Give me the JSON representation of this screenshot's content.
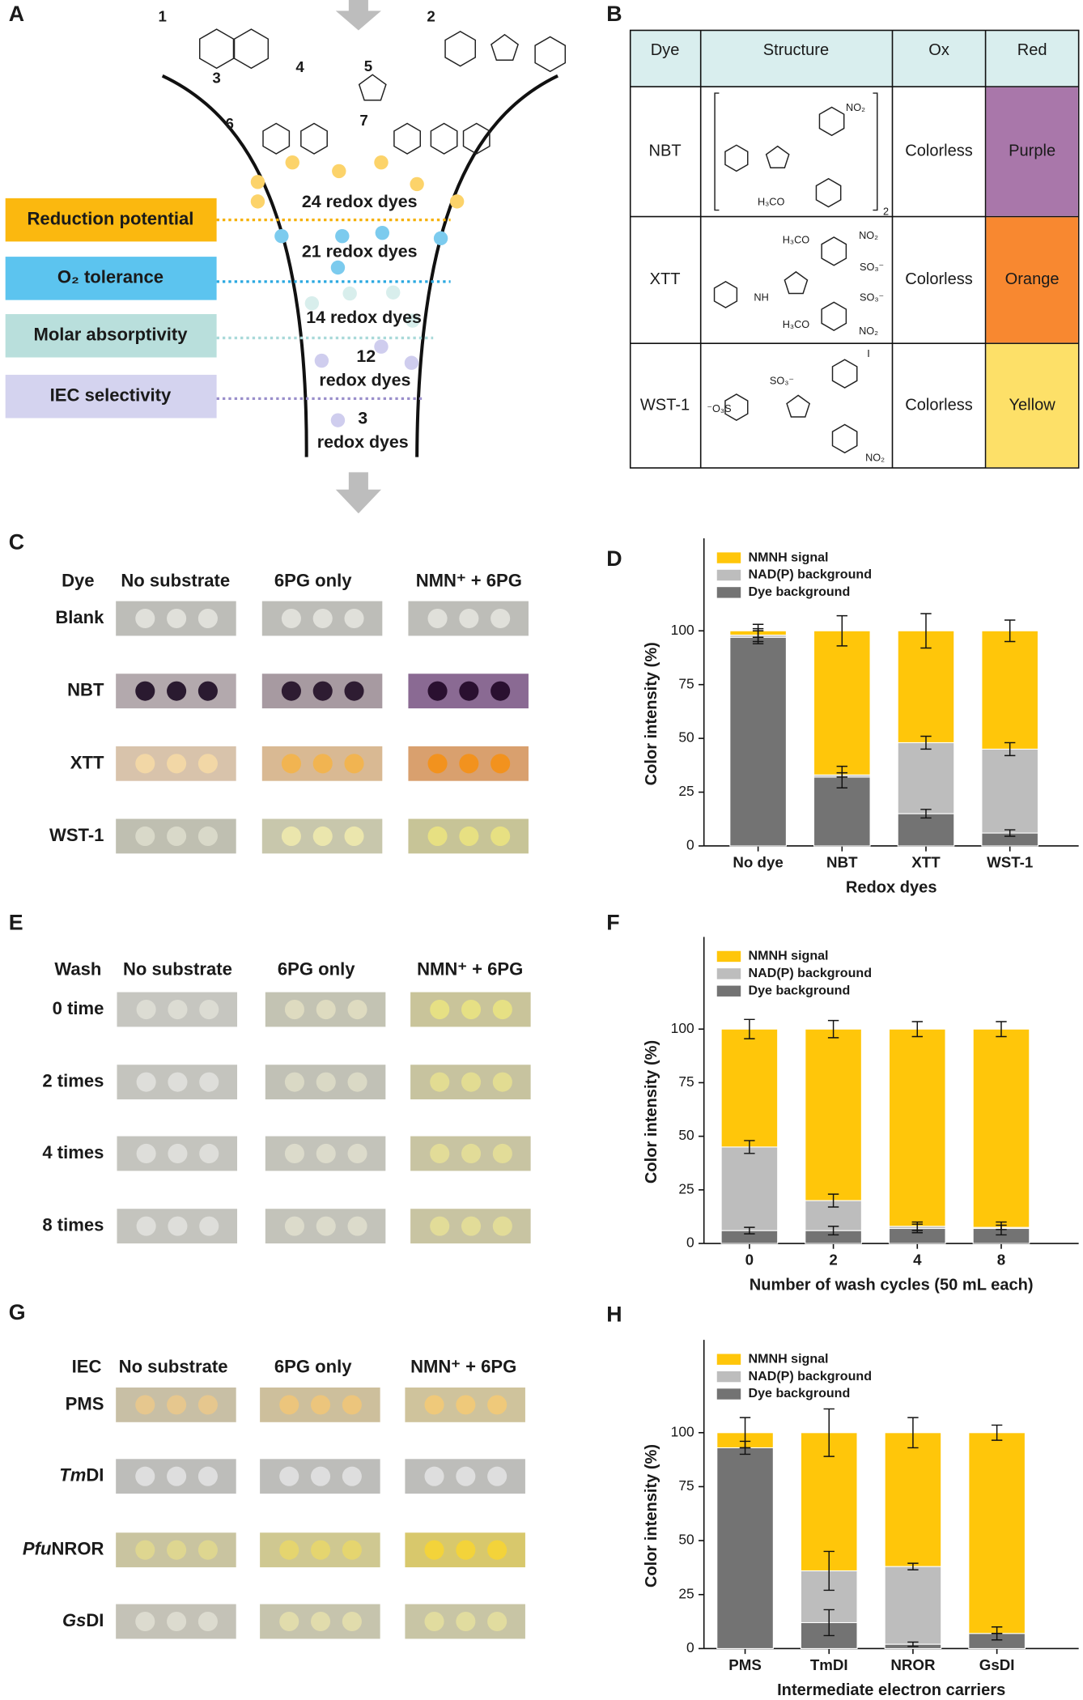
{
  "panel_labels": [
    "A",
    "B",
    "C",
    "D",
    "E",
    "F",
    "G",
    "H"
  ],
  "panel_a": {
    "molecules": [
      "1",
      "2",
      "3",
      "4",
      "5",
      "6",
      "7"
    ],
    "criteria": [
      "Reduction potential",
      "O₂ tolerance",
      "Molar absorptivity",
      "IEC selectivity"
    ],
    "stages": [
      "24 redox dyes",
      "21 redox dyes",
      "14 redox dyes",
      "12",
      "redox dyes",
      "3",
      "redox dyes"
    ]
  },
  "panel_b": {
    "header": [
      "Dye",
      "Structure",
      "Ox",
      "Red"
    ],
    "rows": [
      {
        "dye": "NBT",
        "ox": "Colorless",
        "red": "Purple",
        "red_color": "#a977aa",
        "structure_labels": [
          "NO₂",
          "H₃CO",
          "2"
        ]
      },
      {
        "dye": "XTT",
        "ox": "Colorless",
        "red": "Orange",
        "red_color": "#f88830",
        "structure_labels": [
          "H₃CO",
          "NO₂",
          "SO₃⁻",
          "NH",
          "SO₃⁻",
          "H₃CO",
          "NO₂"
        ]
      },
      {
        "dye": "WST-1",
        "ox": "Colorless",
        "red": "Yellow",
        "red_color": "#fde068",
        "structure_labels": [
          "SO₃⁻",
          "I",
          "⁻O₃S",
          "NO₂"
        ]
      }
    ]
  },
  "panel_c": {
    "corner": "Dye",
    "columns": [
      "No substrate",
      "6PG only",
      "NMN⁺ + 6PG"
    ],
    "rows": [
      [
        "Blank"
      ],
      [
        "NBT"
      ],
      [
        "XTT"
      ],
      [
        "WST-1"
      ]
    ]
  },
  "panel_e": {
    "corner": "Wash",
    "columns": [
      "No substrate",
      "6PG only",
      "NMN⁺ + 6PG"
    ],
    "rows": [
      [
        "0 time"
      ],
      [
        "2 times"
      ],
      [
        "4 times"
      ],
      [
        "8 times"
      ]
    ]
  },
  "panel_g": {
    "corner": "IEC",
    "columns": [
      "No substrate",
      "6PG only",
      "NMN⁺ + 6PG"
    ],
    "rows": [
      [
        "PMS"
      ],
      [
        "Tm",
        "DI"
      ],
      [
        "Pfu",
        "NROR"
      ],
      [
        "Gs",
        "DI"
      ]
    ]
  },
  "chart_data": [
    {
      "type": "bar",
      "stacked": true,
      "y_label": "Color intensity (%)",
      "x_label": "Redox dyes",
      "legend": "upper left",
      "categories": [
        "No dye",
        "NBT",
        "XTT",
        "WST-1"
      ],
      "ylim": [
        0,
        143
      ],
      "yticks": [
        0,
        25,
        50,
        75,
        100
      ],
      "series": [
        {
          "name": "Dye background",
          "color": "#737373",
          "values": [
            97,
            32,
            15,
            6
          ],
          "errors": [
            3,
            5,
            2,
            1.5
          ]
        },
        {
          "name": "NAD(P) background",
          "color": "#bdbdbd",
          "values": [
            1,
            1,
            33,
            39
          ],
          "errors": [
            3,
            1,
            3,
            3
          ]
        },
        {
          "name": "NMNH signal",
          "color": "#ffc60a",
          "values": [
            2,
            67,
            52,
            55
          ],
          "errors": [
            3,
            7,
            8,
            5
          ]
        }
      ]
    },
    {
      "type": "bar",
      "stacked": true,
      "y_label": "Color intensity (%)",
      "x_label": "Number of wash cycles (50 mL each)",
      "legend": "upper left",
      "categories": [
        "0",
        "2",
        "4",
        "8"
      ],
      "ylim": [
        0,
        143
      ],
      "yticks": [
        0,
        25,
        50,
        75,
        100
      ],
      "series": [
        {
          "name": "Dye background",
          "color": "#737373",
          "values": [
            6,
            6,
            7,
            7
          ],
          "errors": [
            1.5,
            2,
            2,
            3
          ]
        },
        {
          "name": "NAD(P) background",
          "color": "#bdbdbd",
          "values": [
            39,
            14,
            1,
            0.5
          ],
          "errors": [
            3,
            3,
            2,
            1
          ]
        },
        {
          "name": "NMNH signal",
          "color": "#ffc60a",
          "values": [
            55,
            80,
            92,
            92.5
          ],
          "errors": [
            4.5,
            4,
            3.5,
            3.5
          ]
        }
      ]
    },
    {
      "type": "bar",
      "stacked": true,
      "y_label": "Color intensity (%)",
      "x_label": "Intermediate electron carriers",
      "legend": "upper left",
      "categories": [
        "PMS",
        "TmDI",
        "NROR",
        "GsDI"
      ],
      "ylim": [
        0,
        143
      ],
      "yticks": [
        0,
        25,
        50,
        75,
        100
      ],
      "series": [
        {
          "name": "Dye background",
          "color": "#737373",
          "values": [
            93,
            12,
            2,
            7
          ],
          "errors": [
            3,
            6,
            1,
            3
          ]
        },
        {
          "name": "NAD(P) background",
          "color": "#bdbdbd",
          "values": [
            0,
            24,
            36,
            0
          ],
          "errors": [
            0,
            9,
            1.5,
            0
          ]
        },
        {
          "name": "NMNH signal",
          "color": "#ffc60a",
          "values": [
            7,
            64,
            62,
            93
          ],
          "errors": [
            7,
            11,
            7,
            3.5
          ]
        }
      ]
    }
  ]
}
